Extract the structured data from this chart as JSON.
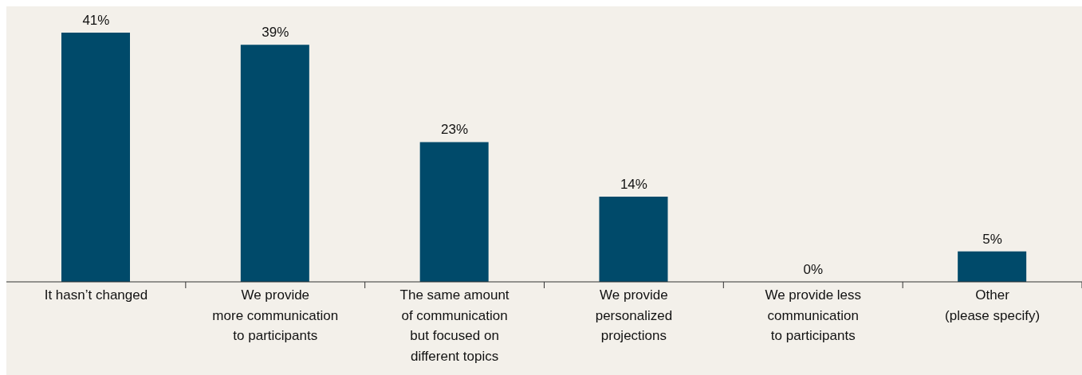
{
  "chart_data": {
    "type": "bar",
    "categories": [
      "It hasn’t changed",
      "We provide\nmore communication\nto participants",
      "The same amount\nof communication\nbut focused on\ndifferent topics",
      "We provide\npersonalized\nprojections",
      "We provide less\ncommunication\nto participants",
      "Other\n(please specify)"
    ],
    "values": [
      41,
      39,
      23,
      14,
      0,
      5
    ],
    "color": "#004a6a",
    "data_labels": true,
    "value_labels": [
      "41%",
      "39%",
      "23%",
      "14%",
      "0%",
      "5%"
    ]
  }
}
